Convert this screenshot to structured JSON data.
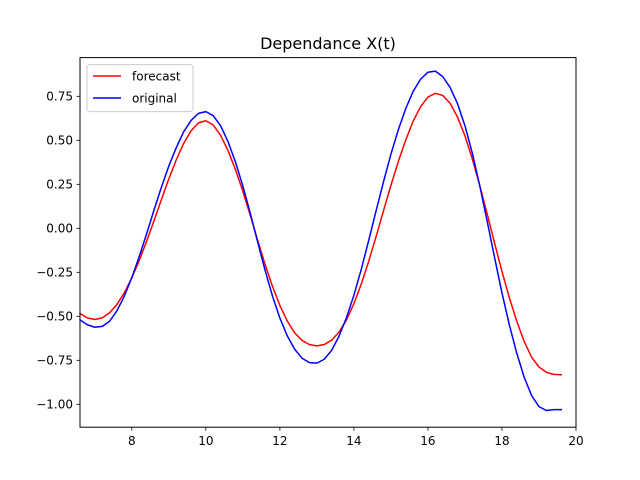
{
  "chart_data": {
    "type": "line",
    "title": "Dependance X(t)",
    "xlabel": "",
    "ylabel": "",
    "xlim": [
      6.6,
      20.0
    ],
    "ylim": [
      -1.13,
      0.97
    ],
    "x_ticks": [
      8,
      10,
      12,
      14,
      16,
      18,
      20
    ],
    "x_tick_labels": [
      "8",
      "10",
      "12",
      "14",
      "16",
      "18",
      "20"
    ],
    "y_ticks": [
      -1.0,
      -0.75,
      -0.5,
      -0.25,
      0.0,
      0.25,
      0.5,
      0.75
    ],
    "y_tick_labels": [
      "−1.00",
      "−0.75",
      "−0.50",
      "−0.25",
      "0.00",
      "0.25",
      "0.50",
      "0.75"
    ],
    "grid": false,
    "legend_position": "top-left",
    "series": [
      {
        "name": "forecast",
        "color": "#ff0000",
        "x": [
          6.6,
          6.8,
          7.0,
          7.2,
          7.4,
          7.6,
          7.8,
          8.0,
          8.2,
          8.4,
          8.6,
          8.8,
          9.0,
          9.2,
          9.4,
          9.6,
          9.8,
          10.0,
          10.2,
          10.4,
          10.6,
          10.8,
          11.0,
          11.2,
          11.4,
          11.6,
          11.8,
          12.0,
          12.2,
          12.4,
          12.6,
          12.8,
          13.0,
          13.2,
          13.4,
          13.6,
          13.8,
          14.0,
          14.2,
          14.4,
          14.6,
          14.8,
          15.0,
          15.2,
          15.4,
          15.6,
          15.8,
          16.0,
          16.2,
          16.4,
          16.6,
          16.8,
          17.0,
          17.2,
          17.4,
          17.6,
          17.8,
          18.0,
          18.2,
          18.4,
          18.6,
          18.8,
          19.0,
          19.2,
          19.4,
          19.6
        ],
        "values": [
          -0.484,
          -0.509,
          -0.518,
          -0.509,
          -0.48,
          -0.432,
          -0.365,
          -0.281,
          -0.183,
          -0.073,
          0.044,
          0.164,
          0.281,
          0.389,
          0.482,
          0.554,
          0.599,
          0.611,
          0.587,
          0.528,
          0.441,
          0.334,
          0.21,
          0.074,
          -0.068,
          -0.205,
          -0.33,
          -0.438,
          -0.527,
          -0.594,
          -0.637,
          -0.661,
          -0.668,
          -0.66,
          -0.635,
          -0.589,
          -0.52,
          -0.428,
          -0.316,
          -0.187,
          -0.046,
          0.1,
          0.244,
          0.38,
          0.502,
          0.608,
          0.691,
          0.746,
          0.767,
          0.755,
          0.71,
          0.632,
          0.525,
          0.393,
          0.243,
          0.082,
          -0.084,
          -0.245,
          -0.395,
          -0.528,
          -0.643,
          -0.732,
          -0.788,
          -0.818,
          -0.83,
          -0.832
        ]
      },
      {
        "name": "original",
        "color": "#0000ff",
        "x": [
          6.6,
          6.8,
          7.0,
          7.2,
          7.4,
          7.6,
          7.8,
          8.0,
          8.2,
          8.4,
          8.6,
          8.8,
          9.0,
          9.2,
          9.4,
          9.6,
          9.8,
          10.0,
          10.2,
          10.4,
          10.6,
          10.8,
          11.0,
          11.2,
          11.4,
          11.6,
          11.8,
          12.0,
          12.2,
          12.4,
          12.6,
          12.8,
          13.0,
          13.2,
          13.4,
          13.6,
          13.8,
          14.0,
          14.2,
          14.4,
          14.6,
          14.8,
          15.0,
          15.2,
          15.4,
          15.6,
          15.8,
          16.0,
          16.2,
          16.4,
          16.6,
          16.8,
          17.0,
          17.2,
          17.4,
          17.6,
          17.8,
          18.0,
          18.2,
          18.4,
          18.6,
          18.8,
          19.0,
          19.2,
          19.4,
          19.6
        ],
        "values": [
          -0.52,
          -0.548,
          -0.562,
          -0.557,
          -0.528,
          -0.468,
          -0.384,
          -0.28,
          -0.161,
          -0.031,
          0.104,
          0.234,
          0.354,
          0.458,
          0.548,
          0.613,
          0.653,
          0.663,
          0.64,
          0.582,
          0.492,
          0.377,
          0.24,
          0.086,
          -0.078,
          -0.238,
          -0.385,
          -0.51,
          -0.611,
          -0.687,
          -0.738,
          -0.763,
          -0.766,
          -0.744,
          -0.693,
          -0.612,
          -0.507,
          -0.38,
          -0.232,
          -0.068,
          0.1,
          0.265,
          0.421,
          0.56,
          0.68,
          0.778,
          0.847,
          0.887,
          0.893,
          0.862,
          0.8,
          0.708,
          0.583,
          0.426,
          0.242,
          0.04,
          -0.166,
          -0.367,
          -0.549,
          -0.71,
          -0.846,
          -0.95,
          -1.013,
          -1.035,
          -1.03,
          -1.03
        ]
      }
    ]
  }
}
